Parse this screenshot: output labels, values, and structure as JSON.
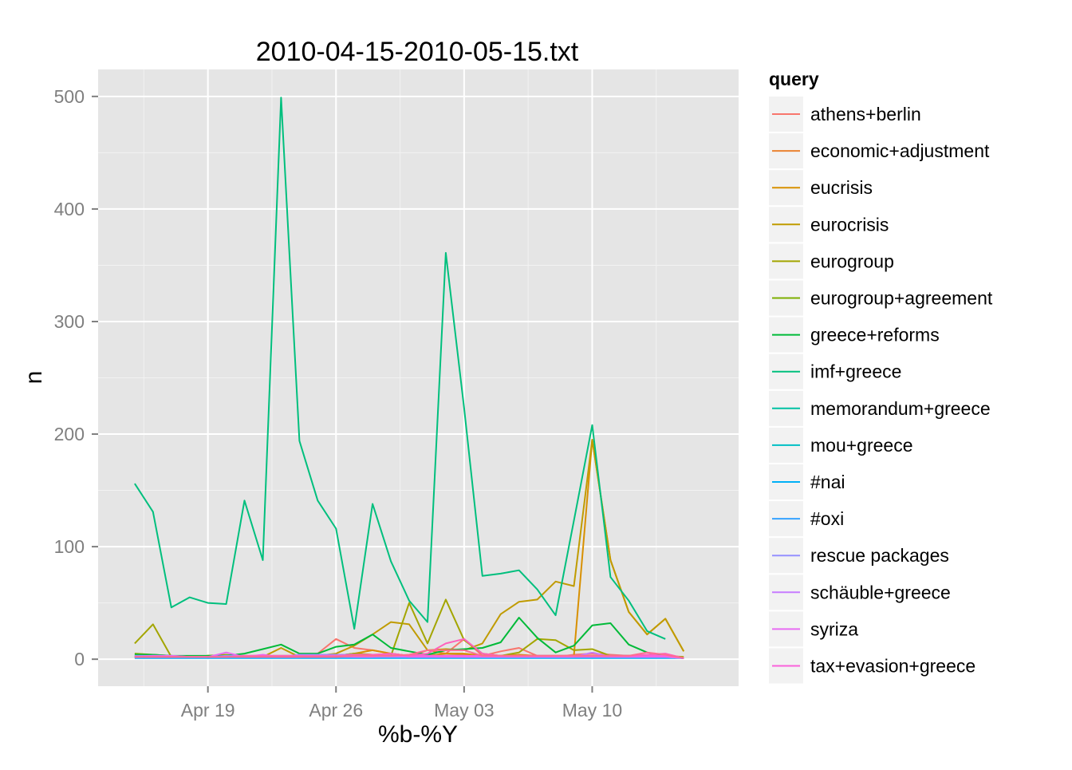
{
  "chart_data": {
    "type": "line",
    "title": "2010-04-15-2010-05-15.txt",
    "xlabel": "%b-%Y",
    "ylabel": "n",
    "x_tick_labels": [
      "Apr 19",
      "Apr 26",
      "May 03",
      "May 10"
    ],
    "x_tick_dates": [
      "2010-04-19",
      "2010-04-26",
      "2010-05-03",
      "2010-05-10"
    ],
    "xlim": [
      "2010-04-13",
      "2010-05-18"
    ],
    "y_ticks": [
      0,
      100,
      200,
      300,
      400,
      500
    ],
    "ylim": [
      -24,
      524
    ],
    "grid": true,
    "legend": {
      "title": "query",
      "position": "right"
    },
    "x": [
      "2010-04-15",
      "2010-04-16",
      "2010-04-17",
      "2010-04-18",
      "2010-04-19",
      "2010-04-20",
      "2010-04-21",
      "2010-04-22",
      "2010-04-23",
      "2010-04-24",
      "2010-04-25",
      "2010-04-26",
      "2010-04-27",
      "2010-04-28",
      "2010-04-29",
      "2010-04-30",
      "2010-05-01",
      "2010-05-02",
      "2010-05-03",
      "2010-05-04",
      "2010-05-05",
      "2010-05-06",
      "2010-05-07",
      "2010-05-08",
      "2010-05-09",
      "2010-05-10",
      "2010-05-11",
      "2010-05-12",
      "2010-05-13",
      "2010-05-14",
      "2010-05-15"
    ],
    "series": [
      {
        "name": "athens+berlin",
        "color": "#F8766D",
        "values": [
          2,
          2,
          2,
          2,
          2,
          3,
          2,
          2,
          2,
          3,
          5,
          18,
          10,
          8,
          5,
          3,
          3,
          5,
          18,
          3,
          7,
          10,
          3,
          2,
          4,
          5,
          4,
          3,
          2,
          2,
          1
        ]
      },
      {
        "name": "economic+adjustment",
        "color": "#EA8331",
        "values": [
          3,
          3,
          2,
          2,
          2,
          2,
          2,
          2,
          2,
          2,
          3,
          3,
          5,
          4,
          3,
          3,
          8,
          5,
          4,
          3,
          3,
          3,
          2,
          2,
          2,
          3,
          3,
          3,
          2,
          2,
          1
        ]
      },
      {
        "name": "eucrisis",
        "color": "#D89000",
        "values": [
          2,
          2,
          2,
          2,
          3,
          3,
          2,
          2,
          2,
          2,
          2,
          3,
          5,
          8,
          5,
          3,
          3,
          5,
          5,
          3,
          3,
          4,
          3,
          3,
          3,
          195,
          88,
          42,
          22,
          36,
          7
        ]
      },
      {
        "name": "eurocrisis",
        "color": "#C09B00",
        "values": [
          2,
          2,
          2,
          2,
          3,
          3,
          2,
          2,
          10,
          2,
          3,
          5,
          12,
          22,
          33,
          31,
          8,
          9,
          8,
          14,
          40,
          51,
          53,
          69,
          65,
          195,
          88,
          42,
          22,
          36,
          7
        ]
      },
      {
        "name": "eurogroup",
        "color": "#A3A500",
        "values": [
          14,
          31,
          2,
          2,
          3,
          4,
          2,
          2,
          2,
          2,
          3,
          3,
          5,
          4,
          3,
          50,
          14,
          53,
          17,
          5,
          3,
          6,
          18,
          17,
          8,
          9,
          3,
          3,
          3,
          3,
          2
        ]
      },
      {
        "name": "eurogroup+agreement",
        "color": "#7CAE00",
        "values": [
          5,
          4,
          3,
          2,
          3,
          3,
          3,
          3,
          3,
          3,
          3,
          3,
          3,
          3,
          3,
          3,
          3,
          3,
          3,
          3,
          3,
          3,
          3,
          3,
          3,
          3,
          3,
          3,
          3,
          3,
          1
        ]
      },
      {
        "name": "greece+reforms",
        "color": "#00BA38",
        "values": [
          4,
          4,
          3,
          3,
          3,
          3,
          5,
          9,
          13,
          5,
          5,
          11,
          13,
          22,
          10,
          7,
          4,
          8,
          9,
          10,
          15,
          37,
          19,
          6,
          12,
          30,
          32,
          13,
          6,
          3,
          1
        ]
      },
      {
        "name": "imf+greece",
        "color": "#00BF7D",
        "values": [
          156,
          131,
          46,
          55,
          50,
          49,
          141,
          88,
          499,
          194,
          141,
          116,
          27,
          138,
          87,
          52,
          33,
          361,
          223,
          74,
          76,
          79,
          62,
          39,
          123,
          208,
          73,
          52,
          25,
          18,
          null
        ]
      },
      {
        "name": "memorandum+greece",
        "color": "#00C1A3",
        "values": [
          2,
          2,
          2,
          2,
          2,
          2,
          2,
          2,
          2,
          2,
          2,
          2,
          2,
          2,
          2,
          2,
          2,
          2,
          2,
          2,
          2,
          2,
          2,
          2,
          2,
          2,
          2,
          2,
          2,
          2,
          1
        ]
      },
      {
        "name": "mou+greece",
        "color": "#00BFC4",
        "values": [
          2,
          2,
          2,
          2,
          2,
          2,
          2,
          2,
          2,
          2,
          2,
          2,
          2,
          2,
          2,
          2,
          2,
          2,
          2,
          2,
          2,
          2,
          2,
          2,
          2,
          2,
          2,
          2,
          2,
          2,
          1
        ]
      },
      {
        "name": "#nai",
        "color": "#00B0F6",
        "values": [
          1,
          1,
          1,
          1,
          1,
          1,
          1,
          1,
          1,
          1,
          1,
          1,
          1,
          1,
          1,
          1,
          1,
          1,
          1,
          1,
          1,
          1,
          1,
          1,
          1,
          1,
          1,
          1,
          1,
          1,
          1
        ]
      },
      {
        "name": "#oxi",
        "color": "#35A2FF",
        "values": [
          2,
          2,
          2,
          2,
          2,
          2,
          2,
          2,
          2,
          2,
          2,
          2,
          2,
          2,
          2,
          2,
          2,
          2,
          2,
          2,
          2,
          2,
          2,
          2,
          2,
          2,
          2,
          2,
          2,
          2,
          1
        ]
      },
      {
        "name": "rescue packages",
        "color": "#9590FF",
        "values": [
          3,
          3,
          3,
          2,
          2,
          3,
          3,
          2,
          2,
          4,
          4,
          4,
          4,
          3,
          3,
          3,
          3,
          3,
          3,
          2,
          2,
          2,
          3,
          3,
          3,
          3,
          3,
          3,
          3,
          3,
          1
        ]
      },
      {
        "name": "schäuble+greece",
        "color": "#C77CFF",
        "values": [
          2,
          2,
          2,
          2,
          2,
          2,
          2,
          2,
          2,
          2,
          2,
          2,
          2,
          2,
          2,
          2,
          2,
          2,
          2,
          2,
          2,
          2,
          2,
          2,
          2,
          6,
          2,
          2,
          2,
          2,
          1
        ]
      },
      {
        "name": "syriza",
        "color": "#E76BF3",
        "values": [
          2,
          3,
          3,
          2,
          2,
          6,
          2,
          4,
          2,
          2,
          3,
          3,
          2,
          2,
          5,
          2,
          2,
          2,
          2,
          2,
          2,
          2,
          2,
          2,
          2,
          2,
          2,
          2,
          2,
          2,
          1
        ]
      },
      {
        "name": "tax+evasion+greece",
        "color": "#FA62DB",
        "values": [
          2,
          2,
          2,
          2,
          2,
          2,
          3,
          3,
          3,
          3,
          3,
          3,
          3,
          3,
          3,
          3,
          3,
          3,
          3,
          3,
          3,
          3,
          3,
          3,
          3,
          3,
          3,
          3,
          3,
          3,
          1
        ]
      },
      {
        "name": "",
        "color": "#FF62BC",
        "values": [
          2,
          2,
          2,
          2,
          2,
          2,
          3,
          3,
          3,
          3,
          3,
          3,
          4,
          4,
          5,
          3,
          5,
          14,
          18,
          5,
          3,
          3,
          3,
          3,
          3,
          3,
          3,
          3,
          4,
          5,
          1
        ]
      },
      {
        "name": "",
        "color": "#FF6C91",
        "values": [
          2,
          2,
          2,
          2,
          2,
          2,
          2,
          2,
          2,
          2,
          2,
          2,
          3,
          3,
          3,
          4,
          8,
          8,
          8,
          3,
          3,
          3,
          3,
          3,
          3,
          3,
          3,
          3,
          6,
          4,
          1
        ]
      }
    ]
  }
}
